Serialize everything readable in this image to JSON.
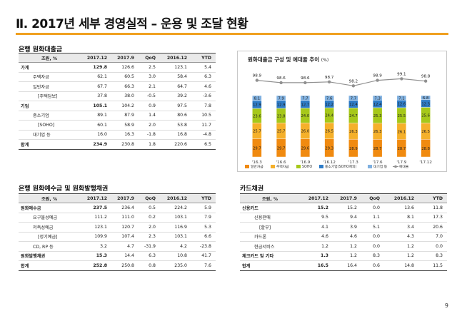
{
  "page_title": "Ⅱ. 2017년 세부 경영실적 – 운용 및 조달 현황",
  "page_number": "9",
  "loans": {
    "title": "은행 원화대출금",
    "headers": [
      "조원, %",
      "2017.12",
      "2017.9",
      "QoQ",
      "2016.12",
      "YTD"
    ],
    "rows": [
      {
        "label": "가계",
        "level": 0,
        "bold": true,
        "values": [
          "129.8",
          "126.6",
          "2.5",
          "123.1",
          "5.4"
        ]
      },
      {
        "label": "주택자금",
        "level": 1,
        "bold": false,
        "values": [
          "62.1",
          "60.5",
          "3.0",
          "58.4",
          "6.3"
        ]
      },
      {
        "label": "일반자금",
        "level": 1,
        "bold": false,
        "values": [
          "67.7",
          "66.3",
          "2.1",
          "64.7",
          "4.6"
        ]
      },
      {
        "label": "[주택담보]",
        "level": 2,
        "bold": false,
        "values": [
          "37.8",
          "38.0",
          "-0.5",
          "39.2",
          "-3.6"
        ]
      },
      {
        "label": "기업",
        "level": 0,
        "bold": true,
        "values": [
          "105.1",
          "104.2",
          "0.9",
          "97.5",
          "7.8"
        ]
      },
      {
        "label": "중소기업",
        "level": 1,
        "bold": false,
        "values": [
          "89.1",
          "87.9",
          "1.4",
          "80.6",
          "10.5"
        ]
      },
      {
        "label": "[SOHO]",
        "level": 2,
        "bold": false,
        "values": [
          "60.1",
          "58.9",
          "2.0",
          "53.8",
          "11.7"
        ]
      },
      {
        "label": "대기업 등",
        "level": 1,
        "bold": false,
        "values": [
          "16.0",
          "16.3",
          "-1.8",
          "16.8",
          "-4.8"
        ]
      },
      {
        "label": "합계",
        "level": 0,
        "bold": true,
        "total": true,
        "values": [
          "234.9",
          "230.8",
          "1.8",
          "220.6",
          "6.5"
        ]
      }
    ]
  },
  "deposits": {
    "title": "은행 원화예수금 및 원화발행채권",
    "headers": [
      "조원, %",
      "2017.12",
      "2017.9",
      "QoQ",
      "2016.12",
      "YTD"
    ],
    "rows": [
      {
        "label": "원화예수금",
        "level": 0,
        "bold": true,
        "values": [
          "237.5",
          "236.4",
          "0.5",
          "224.2",
          "5.9"
        ]
      },
      {
        "label": "요구불성예금",
        "level": 1,
        "bold": false,
        "values": [
          "111.2",
          "111.0",
          "0.2",
          "103.1",
          "7.9"
        ]
      },
      {
        "label": "저축성예금",
        "level": 1,
        "bold": false,
        "values": [
          "123.1",
          "120.7",
          "2.0",
          "116.9",
          "5.3"
        ]
      },
      {
        "label": "[정기예금]",
        "level": 2,
        "bold": false,
        "values": [
          "109.9",
          "107.4",
          "2.3",
          "103.1",
          "6.6"
        ]
      },
      {
        "label": "CD, RP 등",
        "level": 1,
        "bold": false,
        "values": [
          "3.2",
          "4.7",
          "-31.9",
          "4.2",
          "-23.8"
        ]
      },
      {
        "label": "원화발행채권",
        "level": 0,
        "bold": true,
        "values": [
          "15.3",
          "14.4",
          "6.3",
          "10.8",
          "41.7"
        ]
      },
      {
        "label": "합계",
        "level": 0,
        "bold": true,
        "total": true,
        "values": [
          "252.8",
          "250.8",
          "0.8",
          "235.0",
          "7.6"
        ]
      }
    ]
  },
  "cards": {
    "title": "카드채권",
    "headers": [
      "조원, %",
      "2017.12",
      "2017.9",
      "QoQ",
      "2016.12",
      "YTD"
    ],
    "rows": [
      {
        "label": "신용카드",
        "level": 0,
        "bold": true,
        "values": [
          "15.2",
          "15.2",
          "0.0",
          "13.6",
          "11.8"
        ]
      },
      {
        "label": "신용판매",
        "level": 1,
        "bold": false,
        "values": [
          "9.5",
          "9.4",
          "1.1",
          "8.1",
          "17.3"
        ]
      },
      {
        "label": "[할부]",
        "level": 2,
        "bold": false,
        "values": [
          "4.1",
          "3.9",
          "5.1",
          "3.4",
          "20.6"
        ]
      },
      {
        "label": "카드론",
        "level": 1,
        "bold": false,
        "values": [
          "4.6",
          "4.6",
          "0.0",
          "4.3",
          "7.0"
        ]
      },
      {
        "label": "현금서비스",
        "level": 1,
        "bold": false,
        "values": [
          "1.2",
          "1.2",
          "0.0",
          "1.2",
          "0.0"
        ]
      },
      {
        "label": "체크카드 및 기타",
        "level": 0,
        "bold": true,
        "values": [
          "1.3",
          "1.2",
          "8.3",
          "1.2",
          "8.3"
        ]
      },
      {
        "label": "합계",
        "level": 0,
        "bold": true,
        "total": true,
        "values": [
          "16.5",
          "16.4",
          "0.6",
          "14.8",
          "11.5"
        ]
      }
    ]
  },
  "chart_data": {
    "type": "bar",
    "stacked": true,
    "title": "원화대출금 구성 및 예대율 추이",
    "unit": "(%)",
    "categories": [
      "'16.3",
      "'16.6",
      "'16.9",
      "'16.12",
      "'17.3",
      "'17.6",
      "'17.9",
      "'17.12"
    ],
    "series": [
      {
        "name": "일반자금",
        "color": "#f08a10",
        "values": [
          29.7,
          29.7,
          29.6,
          29.3,
          28.9,
          28.7,
          28.7,
          28.8
        ]
      },
      {
        "name": "주택자금",
        "color": "#f5b02a",
        "values": [
          25.7,
          25.7,
          26.0,
          26.5,
          26.3,
          26.3,
          26.1,
          26.5
        ]
      },
      {
        "name": "SOHO",
        "color": "#a6c81a",
        "values": [
          23.6,
          23.8,
          24.0,
          24.4,
          24.7,
          25.3,
          25.5,
          25.6
        ]
      },
      {
        "name": "중소기업(SOHO제외)",
        "color": "#2e7cc7",
        "values": [
          12.9,
          12.9,
          12.7,
          12.2,
          12.4,
          12.4,
          12.6,
          12.3
        ]
      },
      {
        "name": "대기업 등",
        "color": "#7fb0e0",
        "values": [
          8.1,
          7.9,
          7.7,
          7.6,
          7.7,
          7.3,
          7.1,
          6.8
        ]
      }
    ],
    "line": {
      "name": "예대율",
      "color": "#909090",
      "values": [
        98.9,
        98.6,
        98.6,
        98.7,
        98.2,
        98.9,
        99.1,
        98.8
      ]
    },
    "legend": [
      "일반자금",
      "주택자금",
      "SOHO",
      "중소기업(SOHO제외)",
      "대기업 등",
      "예대율"
    ],
    "legend_position": "bottom",
    "grid": false
  }
}
